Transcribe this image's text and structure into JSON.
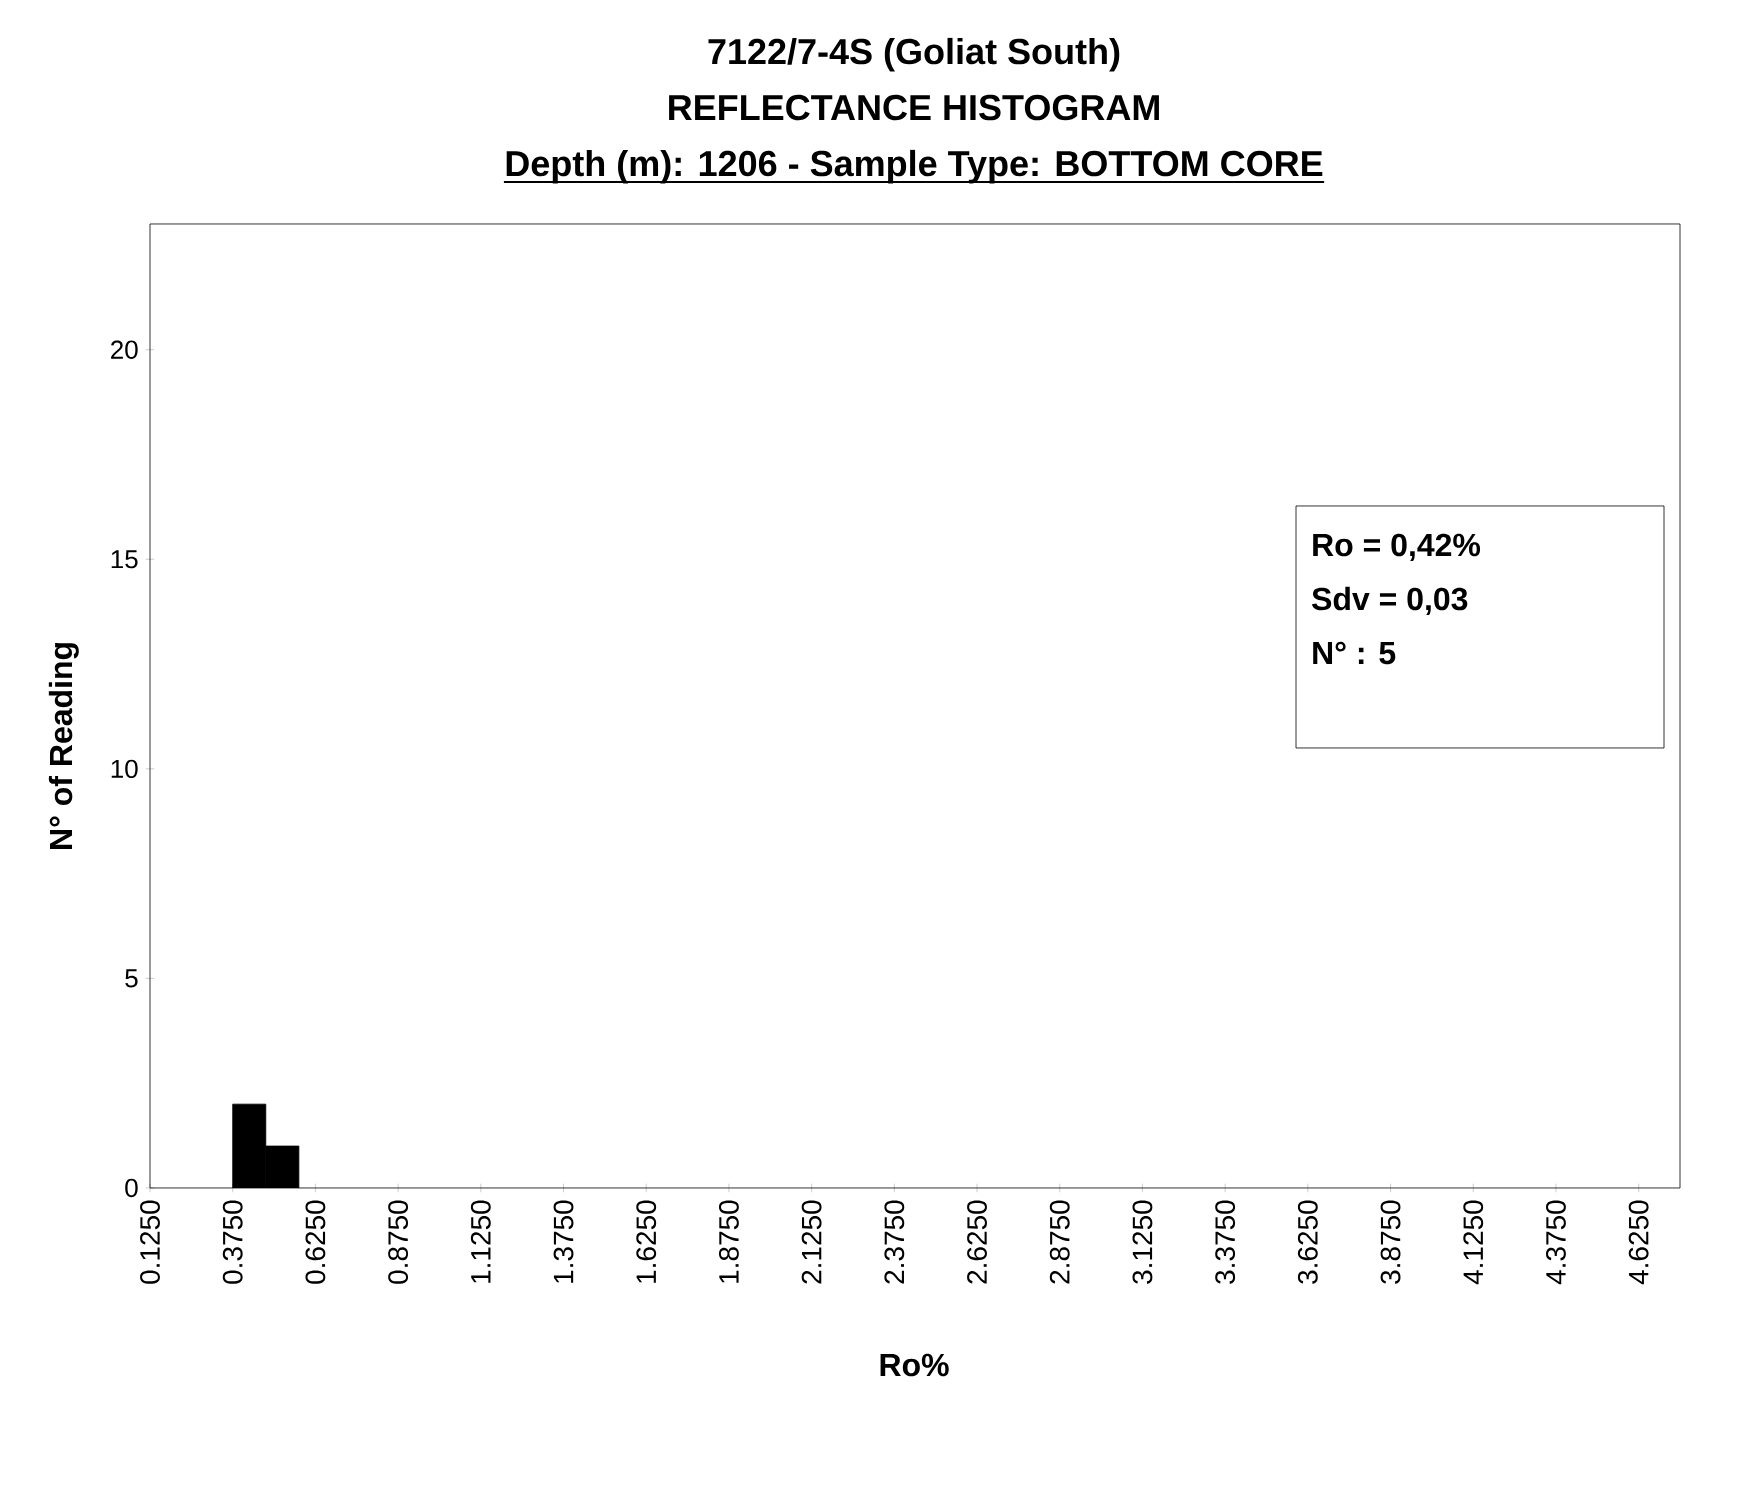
{
  "chart_data": {
    "type": "histogram",
    "title": "7122/7-4S (Goliat South)",
    "subtitle": "REFLECTANCE HISTOGRAM",
    "xlabel": "Ro%",
    "ylabel": "N°  of Reading",
    "bins": [
      0.375,
      0.475,
      0.575
    ],
    "values": [
      2,
      1
    ],
    "color": "#000000",
    "xlim": [
      0.125,
      4.75
    ],
    "ylim": [
      0,
      23
    ],
    "yticks": [
      0,
      5,
      10,
      15,
      20
    ],
    "xticks": [
      {
        "value": 0.125,
        "label": "0.1250"
      },
      {
        "value": 0.375,
        "label": "0.3750"
      },
      {
        "value": 0.625,
        "label": "0.6250"
      },
      {
        "value": 0.875,
        "label": "0.8750"
      },
      {
        "value": 1.125,
        "label": "1.1250"
      },
      {
        "value": 1.375,
        "label": "1.3750"
      },
      {
        "value": 1.625,
        "label": "1.6250"
      },
      {
        "value": 1.875,
        "label": "1.8750"
      },
      {
        "value": 2.125,
        "label": "2.1250"
      },
      {
        "value": 2.375,
        "label": "2.3750"
      },
      {
        "value": 2.625,
        "label": "2.6250"
      },
      {
        "value": 2.875,
        "label": "2.8750"
      },
      {
        "value": 3.125,
        "label": "3.1250"
      },
      {
        "value": 3.375,
        "label": "3.3750"
      },
      {
        "value": 3.625,
        "label": "3.6250"
      },
      {
        "value": 3.875,
        "label": "3.8750"
      },
      {
        "value": 4.125,
        "label": "4.1250"
      },
      {
        "value": 4.375,
        "label": "4.3750"
      },
      {
        "value": 4.625,
        "label": "4.6250"
      }
    ],
    "grid": false,
    "annotations": [
      "Depth (m): 1206 - Sample Type: BOTTOM CORE",
      "Ro = 0,42%",
      "Sdv = 0,03",
      "N° : 5"
    ]
  }
}
